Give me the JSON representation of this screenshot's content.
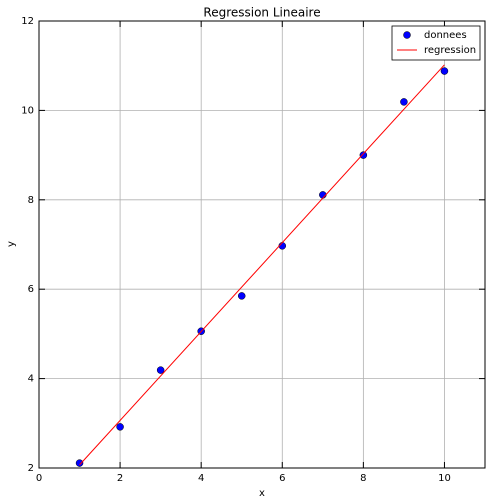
{
  "chart_data": {
    "type": "scatter",
    "title": "Regression Lineaire",
    "xlabel": "x",
    "ylabel": "y",
    "xlim": [
      0,
      11
    ],
    "ylim": [
      2,
      12
    ],
    "xticks": [
      0,
      2,
      4,
      6,
      8,
      10
    ],
    "yticks": [
      2,
      4,
      6,
      8,
      10,
      12
    ],
    "grid": true,
    "legend": "upper right",
    "series": [
      {
        "name": "donnees",
        "type": "scatter",
        "color": "#0000ff",
        "x": [
          1,
          2,
          3,
          4,
          5,
          6,
          7,
          8,
          9,
          10
        ],
        "values": [
          2.11,
          2.92,
          4.19,
          5.06,
          5.85,
          6.97,
          8.11,
          9.0,
          10.19,
          10.88
        ]
      },
      {
        "name": "regression",
        "type": "line",
        "color": "#ff0000",
        "x": [
          1,
          10
        ],
        "values": [
          2.07,
          11.02
        ]
      }
    ]
  }
}
